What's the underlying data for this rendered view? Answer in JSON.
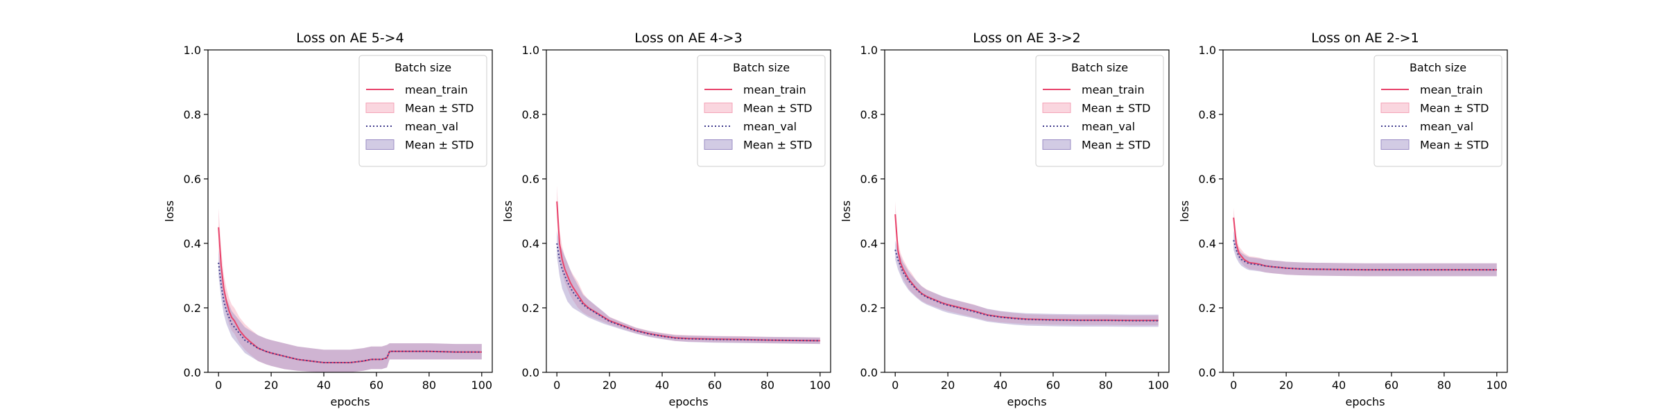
{
  "colors": {
    "train": "#e8436b",
    "train_band": "#f4a3b7",
    "val": "#3f3a8c",
    "val_band": "#9b8cc4"
  },
  "legend": {
    "title": "Batch size",
    "entries": [
      "mean_train",
      "Mean ± STD",
      "mean_val",
      "Mean ± STD"
    ]
  },
  "chart_data": [
    {
      "type": "line",
      "title": "Loss on AE 5->4",
      "xlabel": "epochs",
      "ylabel": "loss",
      "xlim": [
        -4,
        104
      ],
      "ylim": [
        0,
        1
      ],
      "xticks": [
        0,
        20,
        40,
        60,
        80,
        100
      ],
      "yticks": [
        0.0,
        0.2,
        0.4,
        0.6,
        0.8,
        1.0
      ],
      "legend_position": "top-right",
      "grid": false,
      "x": [
        0,
        1,
        2,
        3,
        4,
        5,
        6,
        8,
        10,
        12,
        15,
        18,
        20,
        25,
        30,
        35,
        40,
        45,
        50,
        55,
        58,
        62,
        64,
        65,
        70,
        80,
        90,
        100
      ],
      "series": [
        {
          "name": "mean_train",
          "values": [
            0.45,
            0.33,
            0.26,
            0.22,
            0.19,
            0.17,
            0.16,
            0.13,
            0.11,
            0.095,
            0.075,
            0.065,
            0.06,
            0.05,
            0.04,
            0.035,
            0.03,
            0.03,
            0.03,
            0.035,
            0.04,
            0.04,
            0.045,
            0.065,
            0.065,
            0.065,
            0.063,
            0.063
          ],
          "lower": [
            0.39,
            0.28,
            0.22,
            0.18,
            0.15,
            0.13,
            0.12,
            0.09,
            0.07,
            0.055,
            0.035,
            0.025,
            0.02,
            0.01,
            0.005,
            0.002,
            0.0,
            0.0,
            0.0,
            0.005,
            0.01,
            0.01,
            0.015,
            0.04,
            0.04,
            0.04,
            0.04,
            0.04
          ],
          "upper": [
            0.51,
            0.38,
            0.3,
            0.26,
            0.23,
            0.21,
            0.2,
            0.17,
            0.15,
            0.135,
            0.115,
            0.105,
            0.1,
            0.09,
            0.08,
            0.075,
            0.07,
            0.07,
            0.07,
            0.075,
            0.08,
            0.08,
            0.085,
            0.09,
            0.09,
            0.09,
            0.088,
            0.088
          ]
        },
        {
          "name": "mean_val",
          "values": [
            0.34,
            0.27,
            0.22,
            0.19,
            0.17,
            0.15,
            0.14,
            0.12,
            0.1,
            0.09,
            0.075,
            0.065,
            0.06,
            0.05,
            0.04,
            0.035,
            0.03,
            0.03,
            0.03,
            0.035,
            0.04,
            0.04,
            0.045,
            0.065,
            0.065,
            0.065,
            0.063,
            0.063
          ],
          "lower": [
            0.3,
            0.23,
            0.18,
            0.15,
            0.13,
            0.11,
            0.1,
            0.08,
            0.06,
            0.05,
            0.035,
            0.025,
            0.02,
            0.01,
            0.005,
            0.002,
            0.0,
            0.0,
            0.0,
            0.005,
            0.01,
            0.01,
            0.015,
            0.04,
            0.04,
            0.04,
            0.04,
            0.04
          ],
          "upper": [
            0.38,
            0.31,
            0.26,
            0.23,
            0.21,
            0.19,
            0.18,
            0.16,
            0.14,
            0.13,
            0.115,
            0.105,
            0.1,
            0.09,
            0.08,
            0.075,
            0.07,
            0.07,
            0.07,
            0.075,
            0.08,
            0.08,
            0.085,
            0.09,
            0.09,
            0.09,
            0.088,
            0.088
          ]
        }
      ]
    },
    {
      "type": "line",
      "title": "Loss on AE 4->3",
      "xlabel": "epochs",
      "ylabel": "loss",
      "xlim": [
        -4,
        104
      ],
      "ylim": [
        0,
        1
      ],
      "xticks": [
        0,
        20,
        40,
        60,
        80,
        100
      ],
      "yticks": [
        0.0,
        0.2,
        0.4,
        0.6,
        0.8,
        1.0
      ],
      "legend_position": "top-right",
      "grid": false,
      "x": [
        0,
        1,
        2,
        3,
        4,
        5,
        6,
        8,
        10,
        12,
        15,
        18,
        20,
        25,
        30,
        35,
        40,
        45,
        50,
        60,
        70,
        80,
        90,
        100
      ],
      "series": [
        {
          "name": "mean_train",
          "values": [
            0.53,
            0.4,
            0.35,
            0.32,
            0.3,
            0.28,
            0.265,
            0.24,
            0.215,
            0.2,
            0.185,
            0.17,
            0.16,
            0.145,
            0.13,
            0.12,
            0.113,
            0.107,
            0.105,
            0.103,
            0.102,
            0.1,
            0.099,
            0.098
          ],
          "lower": [
            0.48,
            0.36,
            0.31,
            0.28,
            0.26,
            0.24,
            0.225,
            0.2,
            0.185,
            0.175,
            0.165,
            0.155,
            0.148,
            0.135,
            0.121,
            0.111,
            0.104,
            0.097,
            0.095,
            0.093,
            0.092,
            0.09,
            0.089,
            0.088
          ],
          "upper": [
            0.58,
            0.44,
            0.39,
            0.36,
            0.34,
            0.32,
            0.305,
            0.28,
            0.245,
            0.225,
            0.205,
            0.185,
            0.172,
            0.155,
            0.139,
            0.129,
            0.122,
            0.117,
            0.115,
            0.113,
            0.112,
            0.11,
            0.109,
            0.108
          ]
        },
        {
          "name": "mean_val",
          "values": [
            0.4,
            0.35,
            0.32,
            0.3,
            0.28,
            0.265,
            0.25,
            0.23,
            0.21,
            0.198,
            0.183,
            0.168,
            0.158,
            0.143,
            0.129,
            0.119,
            0.112,
            0.106,
            0.104,
            0.102,
            0.101,
            0.1,
            0.099,
            0.098
          ],
          "lower": [
            0.36,
            0.3,
            0.26,
            0.24,
            0.22,
            0.21,
            0.2,
            0.19,
            0.18,
            0.17,
            0.16,
            0.15,
            0.145,
            0.132,
            0.12,
            0.11,
            0.103,
            0.097,
            0.094,
            0.092,
            0.091,
            0.09,
            0.089,
            0.088
          ],
          "upper": [
            0.44,
            0.4,
            0.38,
            0.36,
            0.34,
            0.32,
            0.3,
            0.27,
            0.24,
            0.226,
            0.206,
            0.186,
            0.171,
            0.154,
            0.138,
            0.128,
            0.121,
            0.115,
            0.114,
            0.112,
            0.111,
            0.11,
            0.109,
            0.108
          ]
        }
      ]
    },
    {
      "type": "line",
      "title": "Loss on AE 3->2",
      "xlabel": "epochs",
      "ylabel": "loss",
      "xlim": [
        -4,
        104
      ],
      "ylim": [
        0,
        1
      ],
      "xticks": [
        0,
        20,
        40,
        60,
        80,
        100
      ],
      "yticks": [
        0.0,
        0.2,
        0.4,
        0.6,
        0.8,
        1.0
      ],
      "legend_position": "top-right",
      "grid": false,
      "x": [
        0,
        1,
        2,
        3,
        4,
        5,
        6,
        8,
        10,
        12,
        15,
        18,
        20,
        25,
        30,
        35,
        40,
        45,
        50,
        60,
        70,
        80,
        90,
        100
      ],
      "series": [
        {
          "name": "mean_train",
          "values": [
            0.49,
            0.38,
            0.34,
            0.32,
            0.305,
            0.29,
            0.28,
            0.26,
            0.245,
            0.235,
            0.225,
            0.215,
            0.21,
            0.2,
            0.19,
            0.178,
            0.172,
            0.168,
            0.165,
            0.163,
            0.162,
            0.162,
            0.161,
            0.161
          ],
          "lower": [
            0.45,
            0.35,
            0.31,
            0.29,
            0.275,
            0.26,
            0.25,
            0.235,
            0.222,
            0.213,
            0.204,
            0.195,
            0.19,
            0.18,
            0.17,
            0.16,
            0.155,
            0.152,
            0.15,
            0.148,
            0.147,
            0.147,
            0.146,
            0.146
          ],
          "upper": [
            0.53,
            0.41,
            0.37,
            0.35,
            0.335,
            0.32,
            0.31,
            0.285,
            0.268,
            0.257,
            0.246,
            0.235,
            0.23,
            0.22,
            0.21,
            0.196,
            0.189,
            0.184,
            0.18,
            0.178,
            0.177,
            0.177,
            0.176,
            0.176
          ]
        },
        {
          "name": "mean_val",
          "values": [
            0.38,
            0.35,
            0.33,
            0.31,
            0.298,
            0.285,
            0.275,
            0.258,
            0.243,
            0.233,
            0.223,
            0.213,
            0.208,
            0.198,
            0.188,
            0.177,
            0.171,
            0.167,
            0.164,
            0.162,
            0.161,
            0.161,
            0.16,
            0.16
          ],
          "lower": [
            0.35,
            0.32,
            0.3,
            0.28,
            0.268,
            0.256,
            0.247,
            0.232,
            0.219,
            0.21,
            0.2,
            0.19,
            0.185,
            0.176,
            0.167,
            0.157,
            0.152,
            0.148,
            0.145,
            0.143,
            0.142,
            0.142,
            0.141,
            0.141
          ],
          "upper": [
            0.41,
            0.38,
            0.36,
            0.34,
            0.328,
            0.314,
            0.303,
            0.284,
            0.267,
            0.256,
            0.246,
            0.236,
            0.231,
            0.22,
            0.209,
            0.197,
            0.19,
            0.186,
            0.183,
            0.181,
            0.18,
            0.18,
            0.179,
            0.179
          ]
        }
      ]
    },
    {
      "type": "line",
      "title": "Loss on AE 2->1",
      "xlabel": "epochs",
      "ylabel": "loss",
      "xlim": [
        -4,
        104
      ],
      "ylim": [
        0,
        1
      ],
      "xticks": [
        0,
        20,
        40,
        60,
        80,
        100
      ],
      "yticks": [
        0.0,
        0.2,
        0.4,
        0.6,
        0.8,
        1.0
      ],
      "legend_position": "top-right",
      "grid": false,
      "x": [
        0,
        1,
        2,
        3,
        4,
        5,
        6,
        8,
        10,
        12,
        15,
        18,
        20,
        25,
        30,
        40,
        50,
        60,
        70,
        80,
        90,
        100
      ],
      "series": [
        {
          "name": "mean_train",
          "values": [
            0.48,
            0.4,
            0.37,
            0.36,
            0.35,
            0.345,
            0.34,
            0.338,
            0.335,
            0.33,
            0.327,
            0.325,
            0.323,
            0.321,
            0.32,
            0.319,
            0.318,
            0.318,
            0.318,
            0.318,
            0.318,
            0.318
          ],
          "lower": [
            0.45,
            0.375,
            0.35,
            0.34,
            0.33,
            0.325,
            0.32,
            0.318,
            0.315,
            0.31,
            0.307,
            0.305,
            0.303,
            0.301,
            0.3,
            0.299,
            0.298,
            0.298,
            0.298,
            0.298,
            0.298,
            0.298
          ],
          "upper": [
            0.51,
            0.425,
            0.39,
            0.38,
            0.37,
            0.365,
            0.36,
            0.358,
            0.355,
            0.35,
            0.347,
            0.345,
            0.343,
            0.341,
            0.34,
            0.339,
            0.338,
            0.338,
            0.338,
            0.338,
            0.338,
            0.338
          ]
        },
        {
          "name": "mean_val",
          "values": [
            0.41,
            0.38,
            0.36,
            0.35,
            0.345,
            0.34,
            0.337,
            0.335,
            0.333,
            0.33,
            0.327,
            0.325,
            0.323,
            0.321,
            0.32,
            0.319,
            0.318,
            0.318,
            0.318,
            0.318,
            0.318,
            0.318
          ],
          "lower": [
            0.38,
            0.355,
            0.34,
            0.33,
            0.325,
            0.32,
            0.317,
            0.315,
            0.313,
            0.31,
            0.307,
            0.305,
            0.303,
            0.301,
            0.3,
            0.299,
            0.298,
            0.298,
            0.298,
            0.298,
            0.298,
            0.298
          ],
          "upper": [
            0.44,
            0.405,
            0.38,
            0.37,
            0.365,
            0.36,
            0.357,
            0.355,
            0.353,
            0.35,
            0.347,
            0.345,
            0.343,
            0.341,
            0.34,
            0.339,
            0.338,
            0.338,
            0.338,
            0.338,
            0.338,
            0.338
          ]
        }
      ]
    }
  ]
}
